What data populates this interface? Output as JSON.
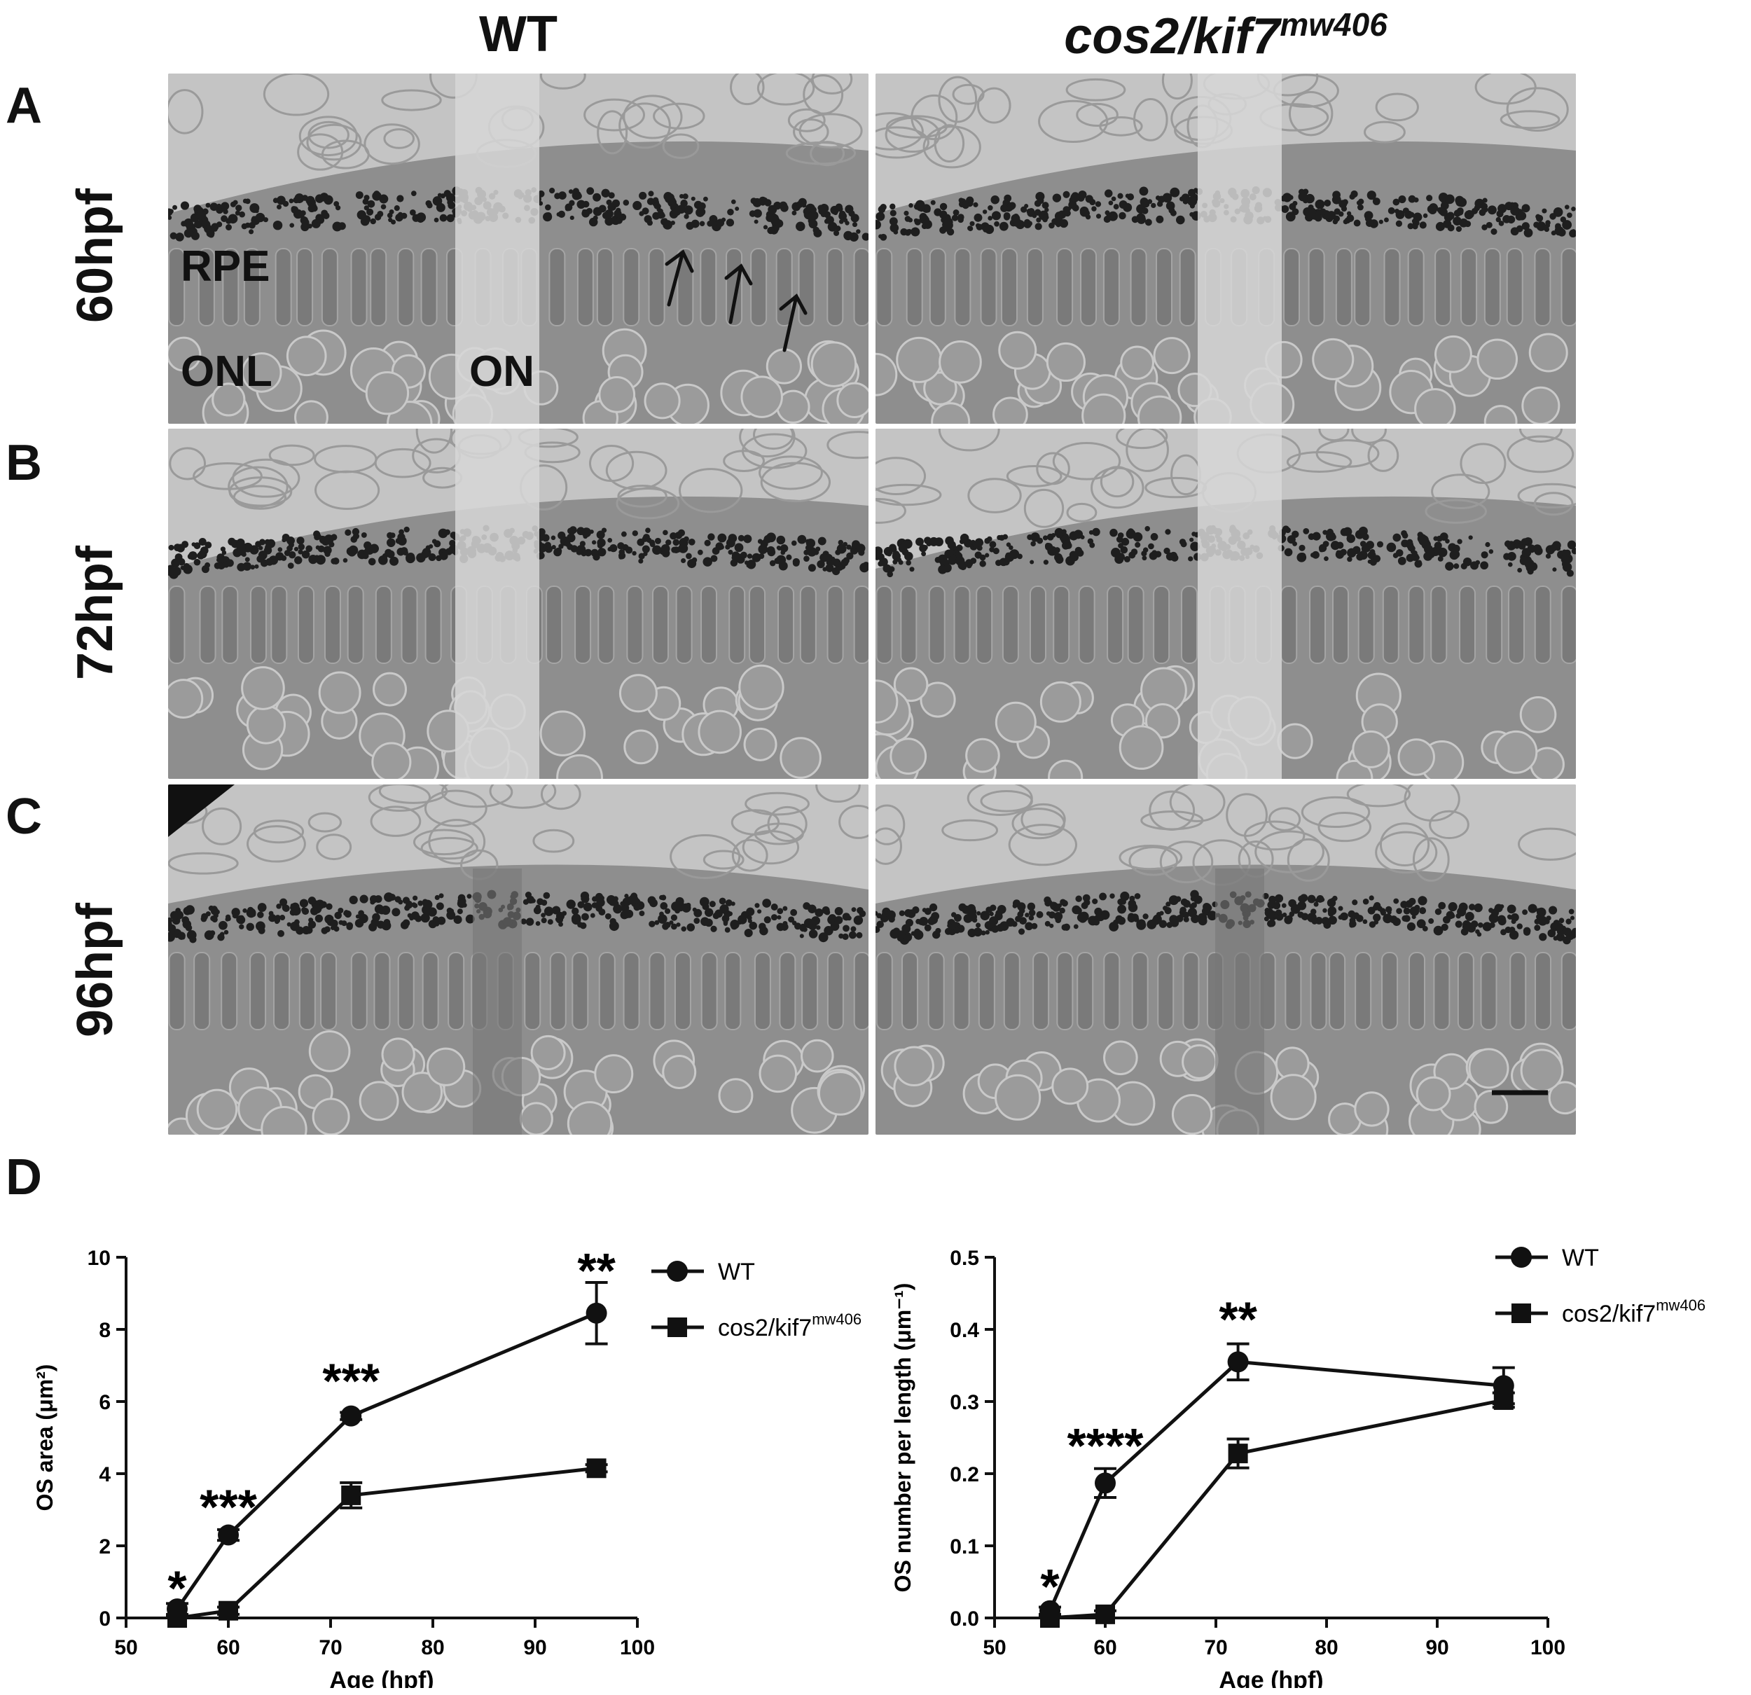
{
  "figure": {
    "columns": [
      {
        "label": "WT",
        "italic": false
      },
      {
        "label": "cos2/kif7",
        "sup": "mw406",
        "italic": true
      }
    ],
    "rows": [
      {
        "letter": "A",
        "label": "60hpf"
      },
      {
        "letter": "B",
        "label": "72hpf"
      },
      {
        "letter": "C",
        "label": "96hpf"
      }
    ],
    "panel_d_letter": "D",
    "annotations": {
      "rpe": "RPE",
      "onl": "ONL",
      "on": "ON"
    }
  },
  "chart_data": [
    {
      "type": "line",
      "xlabel": "Age (hpf)",
      "ylabel": "OS area (μm²)",
      "xlim": [
        50,
        100
      ],
      "ylim": [
        0,
        10
      ],
      "xticks": [
        "50",
        "60",
        "70",
        "80",
        "90",
        "100"
      ],
      "yticks": [
        "0",
        "2",
        "4",
        "6",
        "8",
        "10"
      ],
      "legend_position": "top-right",
      "series": [
        {
          "name": "WT",
          "marker": "circle",
          "points": [
            {
              "x": 55,
              "y": 0.25,
              "err": 0.15
            },
            {
              "x": 60,
              "y": 2.3,
              "err": 0.15
            },
            {
              "x": 72,
              "y": 5.6,
              "err": 0.1
            },
            {
              "x": 96,
              "y": 8.45,
              "err": 0.85
            }
          ]
        },
        {
          "name": "cos2/kif7",
          "sup": "mw406",
          "marker": "square",
          "points": [
            {
              "x": 55,
              "y": 0.0,
              "err": 0.05
            },
            {
              "x": 60,
              "y": 0.2,
              "err": 0.1
            },
            {
              "x": 72,
              "y": 3.4,
              "err": 0.35
            },
            {
              "x": 96,
              "y": 4.15,
              "err": 0.1
            }
          ]
        }
      ],
      "significance": [
        {
          "x": 55,
          "label": "*",
          "y": 0.75
        },
        {
          "x": 60,
          "label": "***",
          "y": 3.0
        },
        {
          "x": 72,
          "label": "***",
          "y": 6.5
        },
        {
          "x": 96,
          "label": "**",
          "y": 9.55
        }
      ]
    },
    {
      "type": "line",
      "xlabel": "Age (hpf)",
      "ylabel": "OS number per length (μm⁻¹)",
      "xlim": [
        50,
        100
      ],
      "ylim": [
        0,
        0.5
      ],
      "xticks": [
        "50",
        "60",
        "70",
        "80",
        "90",
        "100"
      ],
      "yticks": [
        "0.0",
        "0.1",
        "0.2",
        "0.3",
        "0.4",
        "0.5"
      ],
      "legend_position": "top-right",
      "series": [
        {
          "name": "WT",
          "marker": "circle",
          "points": [
            {
              "x": 55,
              "y": 0.01,
              "err": 0.005
            },
            {
              "x": 60,
              "y": 0.187,
              "err": 0.02
            },
            {
              "x": 72,
              "y": 0.355,
              "err": 0.025
            },
            {
              "x": 96,
              "y": 0.322,
              "err": 0.025
            }
          ]
        },
        {
          "name": "cos2/kif7",
          "sup": "mw406",
          "marker": "square",
          "points": [
            {
              "x": 55,
              "y": 0.0,
              "err": 0.003
            },
            {
              "x": 60,
              "y": 0.005,
              "err": 0.005
            },
            {
              "x": 72,
              "y": 0.228,
              "err": 0.02
            },
            {
              "x": 96,
              "y": 0.302,
              "err": 0.01
            }
          ]
        }
      ],
      "significance": [
        {
          "x": 55,
          "label": "*",
          "y": 0.04
        },
        {
          "x": 60,
          "label": "****",
          "y": 0.235
        },
        {
          "x": 72,
          "label": "**",
          "y": 0.41
        }
      ]
    }
  ]
}
